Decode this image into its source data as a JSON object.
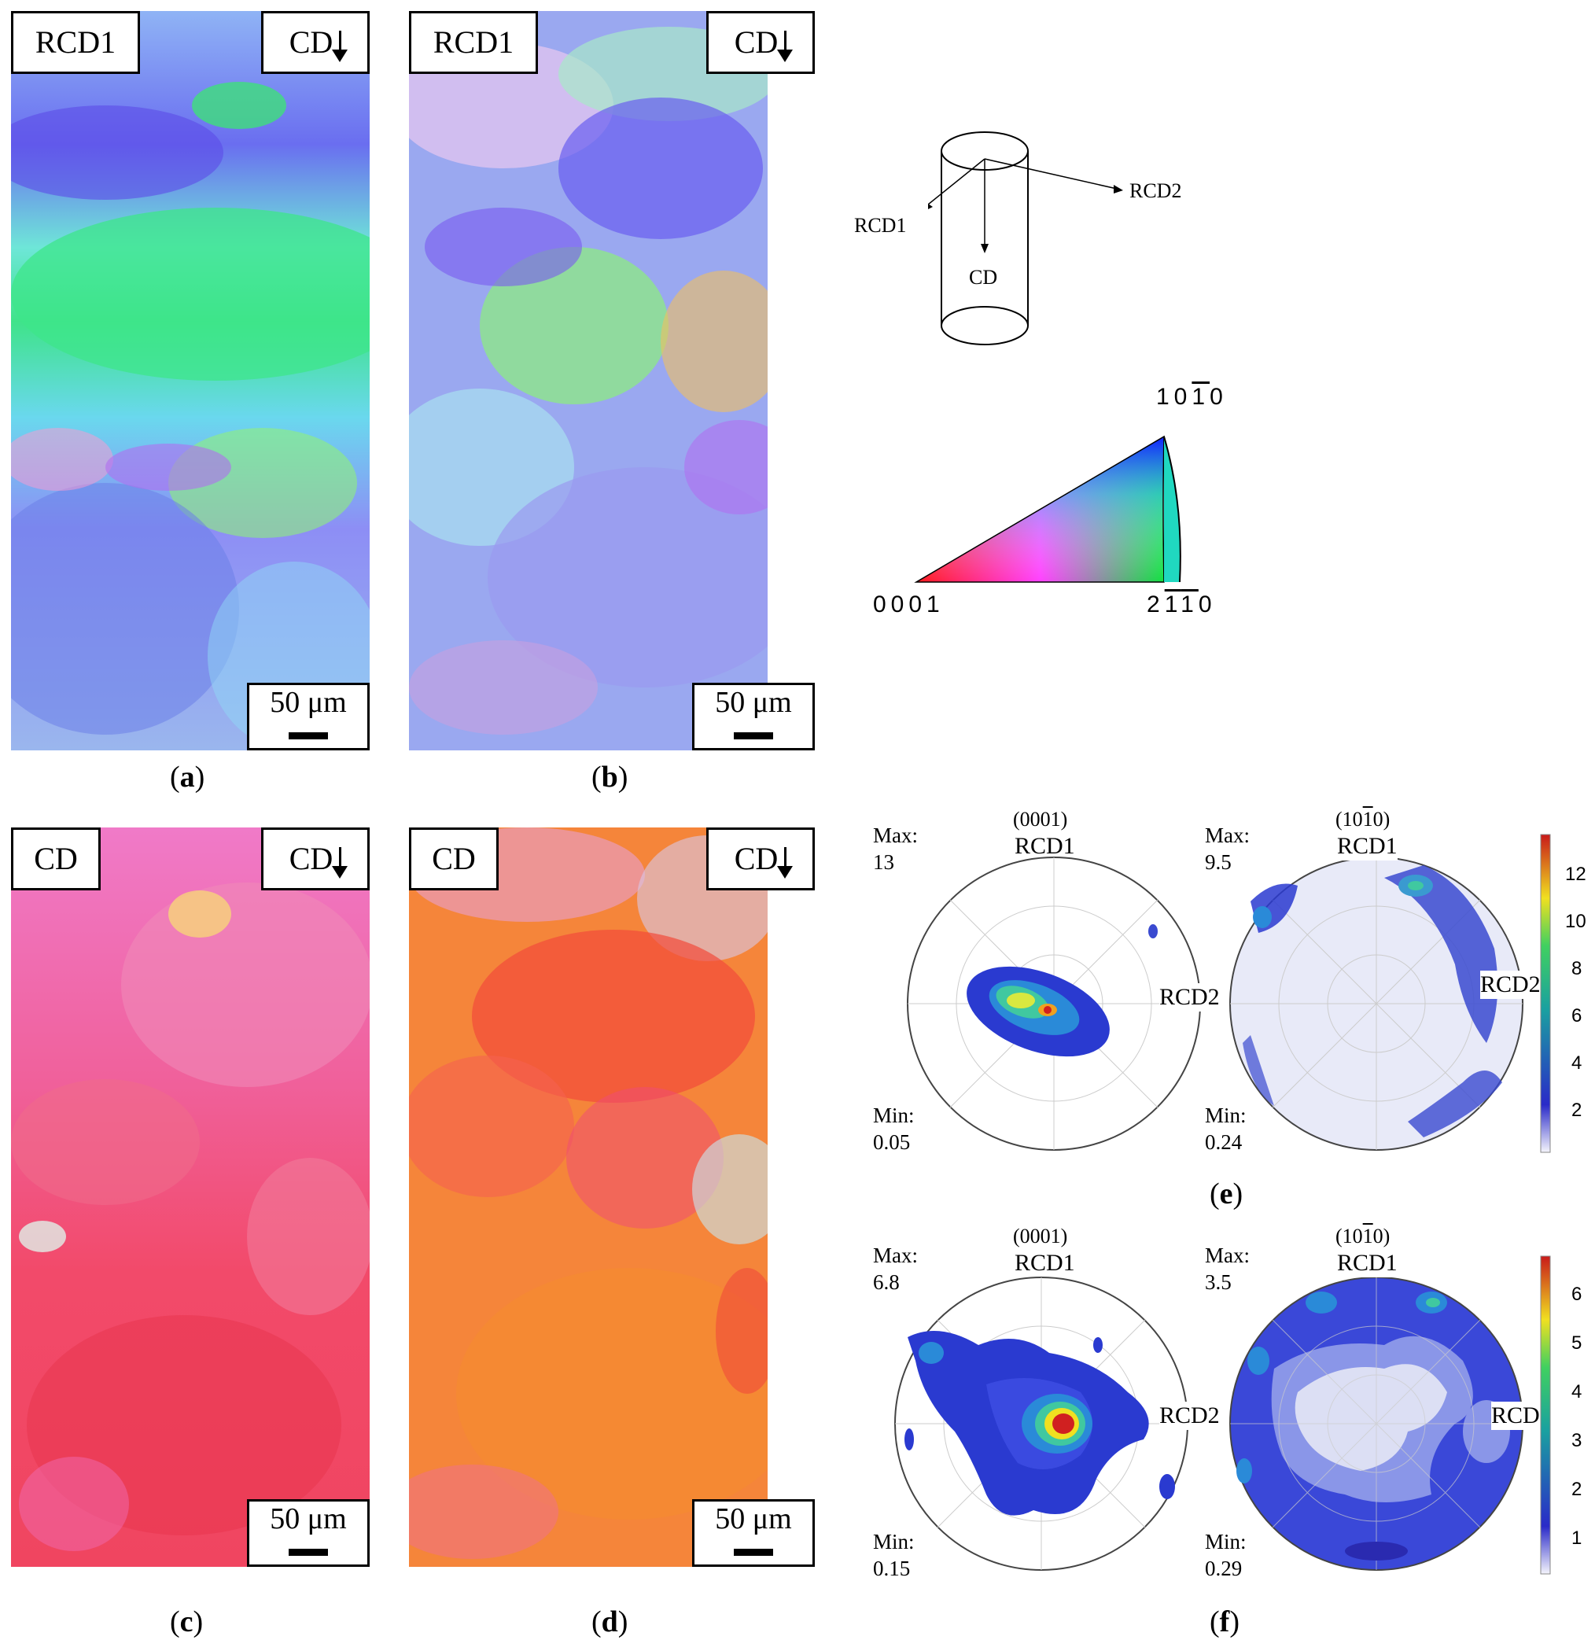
{
  "panels": {
    "a": {
      "caption": "a",
      "frame_label": "RCD1",
      "dir_label": "CD",
      "scale_label": "50 μm"
    },
    "b": {
      "caption": "b",
      "frame_label": "RCD1",
      "dir_label": "CD",
      "scale_label": "50 μm"
    },
    "c": {
      "caption": "c",
      "frame_label": "CD",
      "dir_label": "CD",
      "scale_label": "50 μm"
    },
    "d": {
      "caption": "d",
      "frame_label": "CD",
      "dir_label": "CD",
      "scale_label": "50 μm"
    }
  },
  "schematic": {
    "rcd1": "RCD1",
    "rcd2": "RCD2",
    "cd": "CD"
  },
  "ipf_key": {
    "top": "10",
    "top_bar": "1",
    "top_end": "0",
    "left": "0001",
    "right_a": "2",
    "right_bar1": "1",
    "right_bar2": "1",
    "right_end": "0"
  },
  "pole_figures": {
    "e": {
      "caption": "e",
      "left": {
        "plane_pre": "(0001)",
        "top": "RCD1",
        "side": "RCD2",
        "max_label": "Max:",
        "max": "13",
        "min_label": "Min:",
        "min": "0.05"
      },
      "right": {
        "plane_pre": "(10",
        "plane_bar": "1",
        "plane_post": "0)",
        "top": "RCD1",
        "side": "RCD2",
        "max_label": "Max:",
        "max": "9.5",
        "min_label": "Min:",
        "min": "0.24"
      },
      "colorbar_ticks": [
        "12",
        "10",
        "8",
        "6",
        "4",
        "2"
      ]
    },
    "f": {
      "caption": "f",
      "left": {
        "plane_pre": "(0001)",
        "top": "RCD1",
        "side": "RCD2",
        "max_label": "Max:",
        "max": "6.8",
        "min_label": "Min:",
        "min": "0.15"
      },
      "right": {
        "plane_pre": "(10",
        "plane_bar": "1",
        "plane_post": "0)",
        "top": "RCD1",
        "side": "RCD2",
        "max_label": "Max:",
        "max": "3.5",
        "min_label": "Min:",
        "min": "0.29"
      },
      "colorbar_ticks": [
        "6",
        "5",
        "4",
        "3",
        "2",
        "1"
      ]
    }
  },
  "colors": {
    "blue_grain": "#6f7cf0",
    "green_grain": "#3fe07a",
    "red_grain": "#f0445a",
    "orange_grain": "#f58a3a",
    "cyan_grain": "#8fd8f0"
  }
}
